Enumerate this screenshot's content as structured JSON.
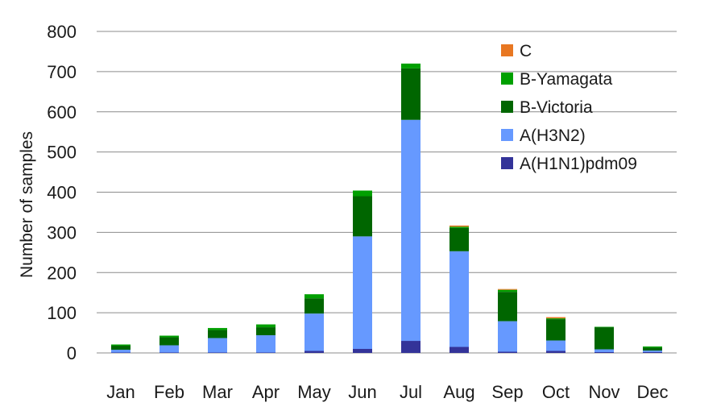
{
  "chart_data": {
    "type": "bar",
    "stacked": true,
    "title": "",
    "xlabel": "",
    "ylabel": "Number of samples",
    "ylim": [
      0,
      800
    ],
    "yticks": [
      0,
      100,
      200,
      300,
      400,
      500,
      600,
      700,
      800
    ],
    "grid": true,
    "legend_position": "top-right",
    "categories": [
      "Jan",
      "Feb",
      "Mar",
      "Apr",
      "May",
      "Jun",
      "Jul",
      "Aug",
      "Sep",
      "Oct",
      "Nov",
      "Dec"
    ],
    "series": [
      {
        "name": "A(H1N1)pdm09",
        "color": "#333399",
        "values": [
          1,
          1,
          1,
          1,
          5,
          10,
          30,
          15,
          3,
          5,
          2,
          2
        ]
      },
      {
        "name": "A(H3N2)",
        "color": "#6699ff",
        "values": [
          7,
          18,
          36,
          43,
          93,
          280,
          550,
          238,
          76,
          26,
          7,
          4
        ]
      },
      {
        "name": "B-Victoria",
        "color": "#006600",
        "values": [
          10,
          20,
          20,
          20,
          38,
          100,
          128,
          58,
          73,
          53,
          55,
          7
        ]
      },
      {
        "name": "B-Yamagata",
        "color": "#00a000",
        "values": [
          3,
          4,
          5,
          7,
          10,
          14,
          12,
          3,
          5,
          2,
          1,
          3
        ]
      },
      {
        "name": "C",
        "color": "#e87722",
        "values": [
          0,
          0,
          0,
          0,
          0,
          0,
          0,
          3,
          2,
          3,
          0,
          0
        ]
      }
    ]
  }
}
